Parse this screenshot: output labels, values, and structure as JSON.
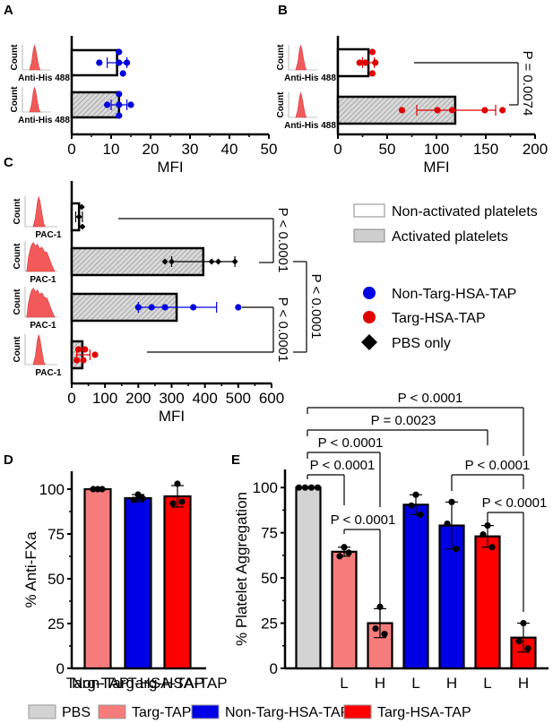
{
  "colors": {
    "pbs": "#d3d3d3",
    "targ_tap": "#f67c7c",
    "non_targ_hsa_tap": "#0000e6",
    "targ_hsa_tap": "#ff0000",
    "blue_point": "#0000e0",
    "red_point": "#e00000",
    "histogram": "#f25a5a",
    "hatch_bg": "#cfcfcf"
  },
  "chart_data": [
    {
      "panel": "A",
      "type": "bar",
      "orientation": "horizontal",
      "xlabel": "MFI",
      "xlim": [
        0,
        50
      ],
      "xticks": [
        0,
        10,
        20,
        30,
        40,
        50
      ],
      "inset_label": "Anti-His 488",
      "inset_ylabel": "Count",
      "bars": [
        {
          "condition": "Non-activated platelets",
          "mean": 11.5,
          "err_low": 9,
          "err_high": 14,
          "points": [
            12,
            7,
            12,
            14,
            13
          ],
          "point_series": "Non-Targ-HSA-TAP"
        },
        {
          "condition": "Activated platelets",
          "mean": 12,
          "err_low": 10,
          "err_high": 14,
          "points": [
            12,
            9,
            12,
            15,
            12
          ],
          "point_series": "Non-Targ-HSA-TAP"
        }
      ]
    },
    {
      "panel": "B",
      "type": "bar",
      "orientation": "horizontal",
      "xlabel": "MFI",
      "xlim": [
        0,
        200
      ],
      "xticks": [
        0,
        50,
        100,
        150,
        200
      ],
      "inset_label": "Anti-His 488",
      "inset_ylabel": "Count",
      "bars": [
        {
          "condition": "Non-activated platelets",
          "mean": 31,
          "err_low": 25,
          "err_high": 37,
          "points": [
            35,
            22,
            28,
            38,
            35
          ],
          "point_series": "Targ-HSA-TAP"
        },
        {
          "condition": "Activated platelets",
          "mean": 119,
          "err_low": 80,
          "err_high": 160,
          "points": [
            65,
            101,
            116,
            149,
            167
          ],
          "point_series": "Targ-HSA-TAP"
        }
      ],
      "annotations": [
        {
          "text": "P = 0.0074",
          "between": [
            0,
            1
          ]
        }
      ]
    },
    {
      "panel": "C",
      "type": "bar",
      "orientation": "horizontal",
      "xlabel": "MFI",
      "xlim": [
        0,
        600
      ],
      "xticks": [
        0,
        100,
        200,
        300,
        400,
        500,
        600
      ],
      "inset_label": "PAC-1",
      "inset_ylabel": "Count",
      "bars": [
        {
          "condition": "Non-activated platelets",
          "mean": 22,
          "err_low": 12,
          "err_high": 32,
          "points": [
            30,
            22,
            32
          ],
          "point_series": "PBS only"
        },
        {
          "condition": "Activated platelets",
          "mean": 395,
          "err_low": 300,
          "err_high": 490,
          "points": [
            280,
            300,
            420,
            440,
            490
          ],
          "point_series": "PBS only"
        },
        {
          "condition": "Activated platelets",
          "mean": 315,
          "err_low": 200,
          "err_high": 435,
          "points": [
            200,
            240,
            280,
            365,
            500
          ],
          "point_series": "Non-Targ-HSA-TAP"
        },
        {
          "condition": "Activated platelets",
          "mean": 32,
          "err_low": 15,
          "err_high": 55,
          "points": [
            20,
            40,
            15,
            35,
            70
          ],
          "point_series": "Targ-HSA-TAP"
        }
      ],
      "annotations": [
        {
          "text": "P < 0.0001",
          "between": [
            0,
            1
          ]
        },
        {
          "text": "P < 0.0001",
          "between": [
            2,
            3
          ]
        },
        {
          "text": "P < 0.0001",
          "between": [
            1,
            3
          ]
        }
      ],
      "legend": {
        "bars": [
          "Non-activated platelets",
          "Activated platelets"
        ],
        "points": [
          "Non-Targ-HSA-TAP",
          "Targ-HSA-TAP",
          "PBS only"
        ]
      }
    },
    {
      "panel": "D",
      "type": "bar",
      "ylabel": "% Anti-FXa",
      "ylim": [
        0,
        110
      ],
      "yticks": [
        0,
        25,
        50,
        75,
        100
      ],
      "categories": [
        "Targ-TAP",
        "Non-Targ-HSA-TAP",
        "Targ-HSA-TAP"
      ],
      "values": [
        100,
        95,
        96
      ],
      "errors": [
        0,
        2,
        6
      ],
      "points": [
        [
          100,
          100,
          100
        ],
        [
          97,
          94,
          95
        ],
        [
          103,
          92,
          93
        ]
      ]
    },
    {
      "panel": "E",
      "type": "bar",
      "ylabel": "% Platelet Aggregation",
      "ylim": [
        0,
        110
      ],
      "yticks": [
        0,
        25,
        50,
        75,
        100
      ],
      "categories": [
        "",
        "L",
        "H",
        "L",
        "H",
        "L",
        "H"
      ],
      "groups": [
        "PBS",
        "Targ-TAP",
        "Targ-TAP",
        "Non-Targ-HSA-TAP",
        "Non-Targ-HSA-TAP",
        "Targ-HSA-TAP",
        "Targ-HSA-TAP"
      ],
      "values": [
        100,
        64.5,
        25,
        90.5,
        79,
        73,
        17
      ],
      "errors": [
        0,
        2.5,
        8,
        5.5,
        13,
        6,
        8
      ],
      "points": [
        [
          100,
          100,
          100,
          100
        ],
        [
          67,
          62,
          64
        ],
        [
          34,
          22,
          19
        ],
        [
          96,
          90,
          85
        ],
        [
          92,
          80,
          66
        ],
        [
          79,
          74,
          67
        ],
        [
          25,
          15,
          11
        ]
      ],
      "annotations": [
        {
          "text": "P < 0.0001",
          "between": [
            0,
            1
          ]
        },
        {
          "text": "P < 0.0001",
          "between": [
            0,
            2
          ]
        },
        {
          "text": "P < 0.0001",
          "between": [
            1,
            2
          ]
        },
        {
          "text": "P = 0.0023",
          "between": [
            0,
            5
          ]
        },
        {
          "text": "P < 0.0001",
          "between": [
            0,
            6
          ]
        },
        {
          "text": "P < 0.0001",
          "between": [
            4,
            6
          ]
        },
        {
          "text": "P < 0.0001",
          "between": [
            5,
            6
          ]
        }
      ]
    }
  ],
  "panel_labels": [
    "A",
    "B",
    "C",
    "D",
    "E"
  ],
  "bottom_legend": [
    "PBS",
    "Targ-TAP",
    "Non-Targ-HSA-TAP",
    "Targ-HSA-TAP"
  ]
}
